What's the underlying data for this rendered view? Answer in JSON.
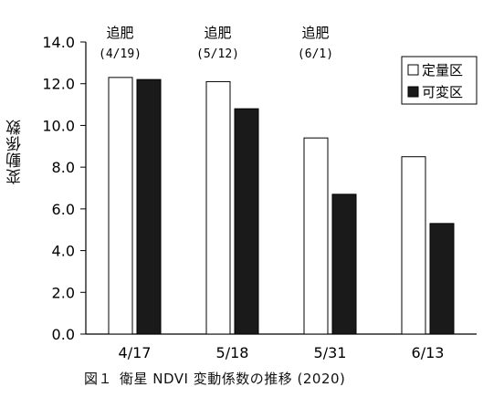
{
  "chart_data": {
    "type": "bar",
    "ylabel": "変動係数",
    "ylim": [
      0,
      14
    ],
    "yticks": [
      "0.0",
      "2.0",
      "4.0",
      "6.0",
      "8.0",
      "10.0",
      "12.0",
      "14.0"
    ],
    "categories": [
      "4/17",
      "5/18",
      "5/31",
      "6/13"
    ],
    "series": [
      {
        "name": "定量区",
        "values": [
          12.3,
          12.1,
          9.4,
          8.5
        ],
        "color": "#ffffff"
      },
      {
        "name": "可変区",
        "values": [
          12.2,
          10.8,
          6.7,
          5.3
        ],
        "color": "#1a1a1a"
      }
    ],
    "legend": {
      "position": "top-right",
      "items": [
        {
          "symbol": "□",
          "label": "定量区"
        },
        {
          "symbol": "■",
          "label": "可変区"
        }
      ]
    },
    "annotations": [
      {
        "category": "4/17",
        "line1": "追肥",
        "line2": "(4/19)"
      },
      {
        "category": "5/18",
        "line1": "追肥",
        "line2": "(5/12)"
      },
      {
        "category": "5/31",
        "line1": "追肥",
        "line2": "(6/1)"
      }
    ]
  },
  "caption": {
    "fig": "図１",
    "text": "衛星 NDVI 変動係数の推移 (2020)"
  }
}
